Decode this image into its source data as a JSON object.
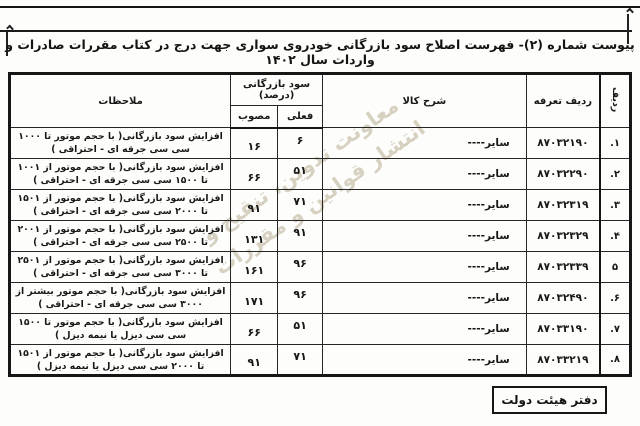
{
  "page": {
    "title": "پیوست شماره (۲)- فهرست اصلاح سود بازرگانی خودروی سواری جهت درج در کتاب مقررات صادرات و واردات سال ۱۴۰۲",
    "footer_stamp": "دفتر هیئت دولت",
    "watermark_line1": "معاونت تدوین، تنقیح و",
    "watermark_line2": "انتشار قوانین و مقررات"
  },
  "icons": {
    "left_trim_mark": "trim-mark",
    "right_trim_mark": "trim-mark"
  },
  "table": {
    "headers": {
      "radif": "ردیف",
      "tariff_row": "ردیف تعرفه",
      "goods_desc": "شرح کالا",
      "profit_group": "سود بازرگانی (درصد)",
      "current": "فعلی",
      "approved": "مصوب",
      "remarks": "ملاحظات"
    },
    "rows": [
      {
        "no": ".۱",
        "tariff": "۸۷۰۳۲۱۹۰",
        "desc": "----سایر",
        "current": "۶",
        "approved": "۱۶",
        "remarks": "افزایش سود بازرگانی( با حجم موتور تا ۱۰۰۰ سی سی جرقه ای - احتراقی )"
      },
      {
        "no": ".۲",
        "tariff": "۸۷۰۳۲۲۹۰",
        "desc": "----سایر",
        "current": "۵۱",
        "approved": "۶۶",
        "remarks": "افزایش سود بازرگانی( با حجم موتور از ۱۰۰۱ تا ۱۵۰۰ سی سی جرقه ای - احتراقی )"
      },
      {
        "no": ".۳",
        "tariff": "۸۷۰۳۲۳۱۹",
        "desc": "----سایر",
        "current": "۷۱",
        "approved": "۹۱",
        "remarks": "افزایش سود بازرگانی( با حجم موتور از ۱۵۰۱ تا ۲۰۰۰ سی سی جرقه ای - احتراقی )"
      },
      {
        "no": ".۴",
        "tariff": "۸۷۰۳۲۳۲۹",
        "desc": "----سایر",
        "current": "۹۱",
        "approved": "۱۳۱",
        "remarks": "افزایش سود بازرگانی( با حجم موتور از ۲۰۰۱ تا ۲۵۰۰ سی سی جرقه ای - احتراقی )"
      },
      {
        "no": "۵",
        "tariff": "۸۷۰۳۲۳۳۹",
        "desc": "----سایر",
        "current": "۹۶",
        "approved": "۱۶۱",
        "remarks": "افزایش سود بازرگانی( با حجم موتور از ۲۵۰۱ تا ۳۰۰۰ سی سی جرقه ای - احتراقی )"
      },
      {
        "no": ".۶",
        "tariff": "۸۷۰۳۲۴۹۰",
        "desc": "----سایر",
        "current": "۹۶",
        "approved": "۱۷۱",
        "remarks": "افزایش سود بازرگانی( با حجم موتور بیشتر از ۳۰۰۰ سی سی جرقه ای - احتراقی )"
      },
      {
        "no": ".۷",
        "tariff": "۸۷۰۳۳۱۹۰",
        "desc": "----سایر",
        "current": "۵۱",
        "approved": "۶۶",
        "remarks": "افزایش سود بازرگانی( با حجم موتور تا ۱۵۰۰ سی سی دیزل یا نیمه دیزل )"
      },
      {
        "no": ".۸",
        "tariff": "۸۷۰۳۳۲۱۹",
        "desc": "----سایر",
        "current": "۷۱",
        "approved": "۹۱",
        "remarks": "افزایش سود بازرگانی( با حجم موتور از ۱۵۰۱ تا ۲۰۰۰ سی سی دیزل یا نیمه دیزل )"
      }
    ]
  }
}
